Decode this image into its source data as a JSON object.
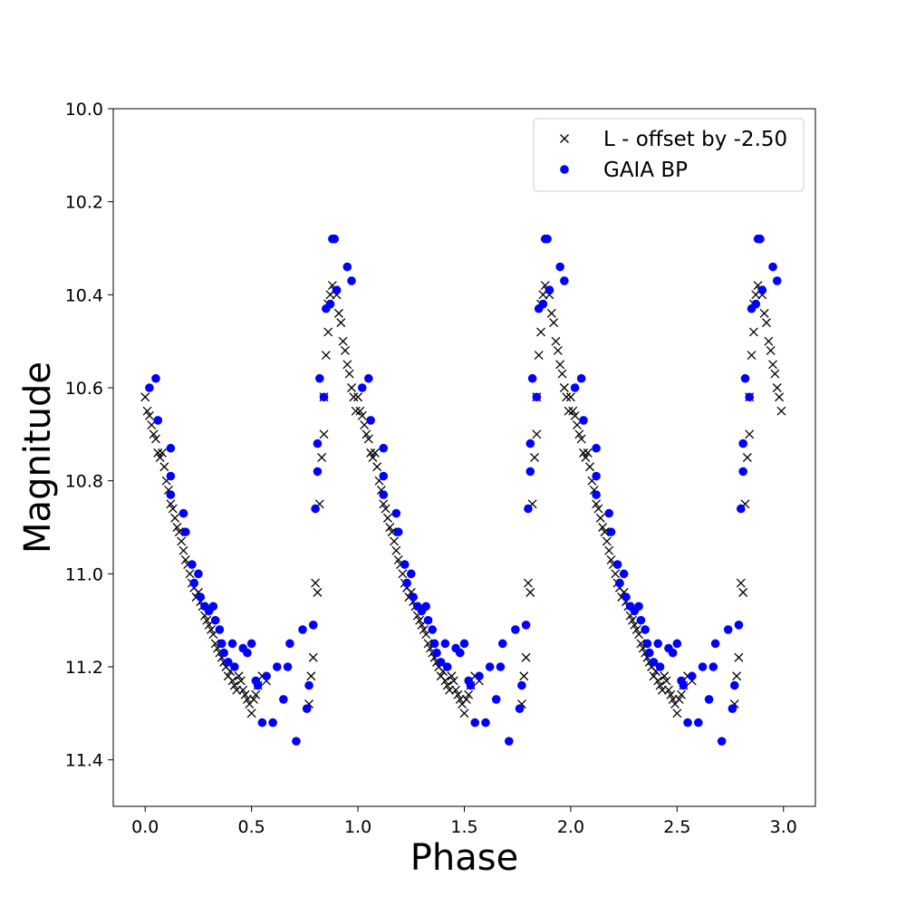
{
  "chart_data": {
    "type": "scatter",
    "xlabel": "Phase",
    "ylabel": "Magnitude",
    "xlim": [
      -0.15,
      3.15
    ],
    "ylim": [
      11.5,
      10.0
    ],
    "y_inverted": true,
    "xticks": [
      "0.0",
      "0.5",
      "1.0",
      "1.5",
      "2.0",
      "2.5",
      "3.0"
    ],
    "yticks": [
      "10.0",
      "10.2",
      "10.4",
      "10.6",
      "10.8",
      "11.0",
      "11.2",
      "11.4"
    ],
    "legend_position": "top-right",
    "grid": false,
    "repeat_period": 1.0,
    "phase_range": [
      0.0,
      3.0
    ],
    "series": [
      {
        "name": "L - offset by -2.50",
        "marker": "x",
        "color": "#000000",
        "points": [
          [
            0.0,
            10.62
          ],
          [
            0.01,
            10.65
          ],
          [
            0.02,
            10.66
          ],
          [
            0.03,
            10.68
          ],
          [
            0.04,
            10.7
          ],
          [
            0.05,
            10.71
          ],
          [
            0.06,
            10.74
          ],
          [
            0.07,
            10.75
          ],
          [
            0.08,
            10.74
          ],
          [
            0.09,
            10.77
          ],
          [
            0.1,
            10.8
          ],
          [
            0.11,
            10.82
          ],
          [
            0.12,
            10.85
          ],
          [
            0.13,
            10.86
          ],
          [
            0.14,
            10.88
          ],
          [
            0.15,
            10.9
          ],
          [
            0.16,
            10.91
          ],
          [
            0.17,
            10.93
          ],
          [
            0.18,
            10.95
          ],
          [
            0.19,
            10.97
          ],
          [
            0.2,
            10.98
          ],
          [
            0.21,
            11.0
          ],
          [
            0.22,
            11.02
          ],
          [
            0.23,
            11.03
          ],
          [
            0.24,
            11.05
          ],
          [
            0.25,
            11.04
          ],
          [
            0.26,
            11.06
          ],
          [
            0.27,
            11.07
          ],
          [
            0.28,
            11.09
          ],
          [
            0.29,
            11.1
          ],
          [
            0.3,
            11.11
          ],
          [
            0.31,
            11.12
          ],
          [
            0.32,
            11.13
          ],
          [
            0.33,
            11.15
          ],
          [
            0.34,
            11.16
          ],
          [
            0.35,
            11.17
          ],
          [
            0.36,
            11.18
          ],
          [
            0.37,
            11.19
          ],
          [
            0.38,
            11.2
          ],
          [
            0.39,
            11.22
          ],
          [
            0.4,
            11.21
          ],
          [
            0.41,
            11.23
          ],
          [
            0.42,
            11.24
          ],
          [
            0.43,
            11.25
          ],
          [
            0.44,
            11.22
          ],
          [
            0.45,
            11.23
          ],
          [
            0.46,
            11.25
          ],
          [
            0.47,
            11.26
          ],
          [
            0.48,
            11.27
          ],
          [
            0.49,
            11.28
          ],
          [
            0.5,
            11.3
          ],
          [
            0.51,
            11.27
          ],
          [
            0.52,
            11.26
          ],
          [
            0.53,
            11.24
          ],
          [
            0.55,
            11.22
          ],
          [
            0.57,
            11.23
          ],
          [
            0.77,
            11.28
          ],
          [
            0.78,
            11.22
          ],
          [
            0.79,
            11.18
          ],
          [
            0.8,
            11.02
          ],
          [
            0.81,
            11.04
          ],
          [
            0.82,
            10.85
          ],
          [
            0.83,
            10.75
          ],
          [
            0.84,
            10.7
          ],
          [
            0.84,
            10.62
          ],
          [
            0.85,
            10.53
          ],
          [
            0.86,
            10.48
          ],
          [
            0.86,
            10.42
          ],
          [
            0.87,
            10.4
          ],
          [
            0.88,
            10.38
          ],
          [
            0.89,
            10.39
          ],
          [
            0.9,
            10.4
          ],
          [
            0.91,
            10.44
          ],
          [
            0.92,
            10.46
          ],
          [
            0.93,
            10.5
          ],
          [
            0.94,
            10.52
          ],
          [
            0.95,
            10.55
          ],
          [
            0.96,
            10.57
          ],
          [
            0.97,
            10.6
          ],
          [
            0.98,
            10.62
          ],
          [
            0.99,
            10.65
          ]
        ]
      },
      {
        "name": "GAIA BP",
        "marker": "o",
        "color": "#0000ff",
        "points": [
          [
            0.02,
            10.6
          ],
          [
            0.05,
            10.58
          ],
          [
            0.06,
            10.67
          ],
          [
            0.12,
            10.73
          ],
          [
            0.12,
            10.79
          ],
          [
            0.12,
            10.83
          ],
          [
            0.18,
            10.87
          ],
          [
            0.19,
            10.91
          ],
          [
            0.22,
            10.98
          ],
          [
            0.23,
            11.02
          ],
          [
            0.25,
            11.0
          ],
          [
            0.26,
            11.05
          ],
          [
            0.28,
            11.07
          ],
          [
            0.3,
            11.08
          ],
          [
            0.32,
            11.07
          ],
          [
            0.33,
            11.1
          ],
          [
            0.35,
            11.12
          ],
          [
            0.36,
            11.15
          ],
          [
            0.37,
            11.17
          ],
          [
            0.39,
            11.19
          ],
          [
            0.41,
            11.15
          ],
          [
            0.42,
            11.2
          ],
          [
            0.46,
            11.16
          ],
          [
            0.48,
            11.17
          ],
          [
            0.5,
            11.15
          ],
          [
            0.52,
            11.23
          ],
          [
            0.53,
            11.24
          ],
          [
            0.55,
            11.32
          ],
          [
            0.57,
            11.22
          ],
          [
            0.6,
            11.32
          ],
          [
            0.62,
            11.2
          ],
          [
            0.65,
            11.27
          ],
          [
            0.67,
            11.2
          ],
          [
            0.68,
            11.15
          ],
          [
            0.71,
            11.36
          ],
          [
            0.74,
            11.12
          ],
          [
            0.76,
            11.29
          ],
          [
            0.77,
            11.24
          ],
          [
            0.79,
            11.11
          ],
          [
            0.8,
            10.86
          ],
          [
            0.81,
            10.78
          ],
          [
            0.81,
            10.72
          ],
          [
            0.82,
            10.58
          ],
          [
            0.84,
            10.62
          ],
          [
            0.85,
            10.43
          ],
          [
            0.87,
            10.42
          ],
          [
            0.88,
            10.28
          ],
          [
            0.89,
            10.28
          ],
          [
            0.9,
            10.39
          ],
          [
            0.95,
            10.34
          ],
          [
            0.97,
            10.37
          ]
        ]
      }
    ]
  }
}
